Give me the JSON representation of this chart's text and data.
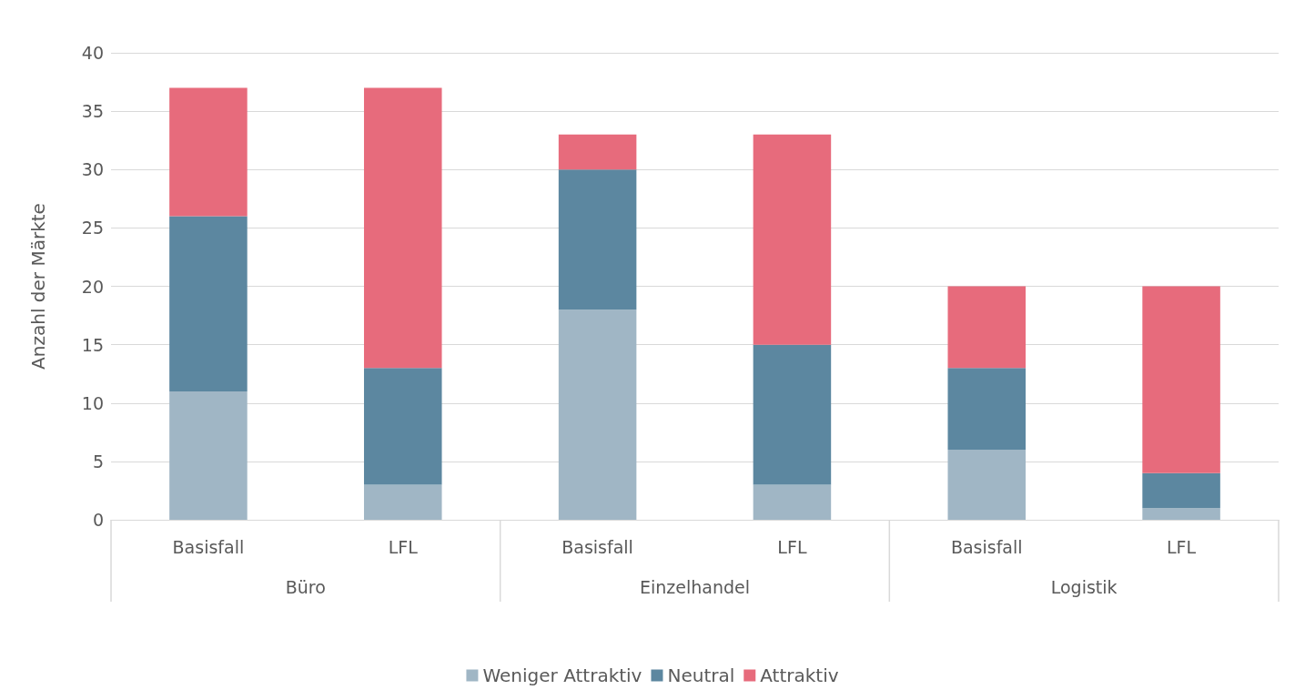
{
  "chart_data": {
    "type": "bar",
    "stacked": true,
    "categories": [
      "Basisfall",
      "LFL",
      "Basisfall",
      "LFL",
      "Basisfall",
      "LFL"
    ],
    "annotations": [
      "Büro",
      "Einzelhandel",
      "Logistik"
    ],
    "ylabel": "Anzahl der Märkte",
    "series": [
      {
        "name": "Weniger Attraktiv",
        "color": "#a0b6c5",
        "values": [
          11,
          3,
          18,
          3,
          6,
          1
        ]
      },
      {
        "name": "Neutral",
        "color": "#5c87a0",
        "values": [
          15,
          10,
          12,
          12,
          7,
          3
        ]
      },
      {
        "name": "Attraktiv",
        "color": "#e76b7c",
        "values": [
          11,
          24,
          3,
          18,
          7,
          16
        ]
      }
    ],
    "ylim": [
      0,
      40
    ],
    "yticks": [
      0,
      5,
      10,
      15,
      20,
      25,
      30,
      35,
      40
    ],
    "grid": "y",
    "legend": "bottom"
  }
}
